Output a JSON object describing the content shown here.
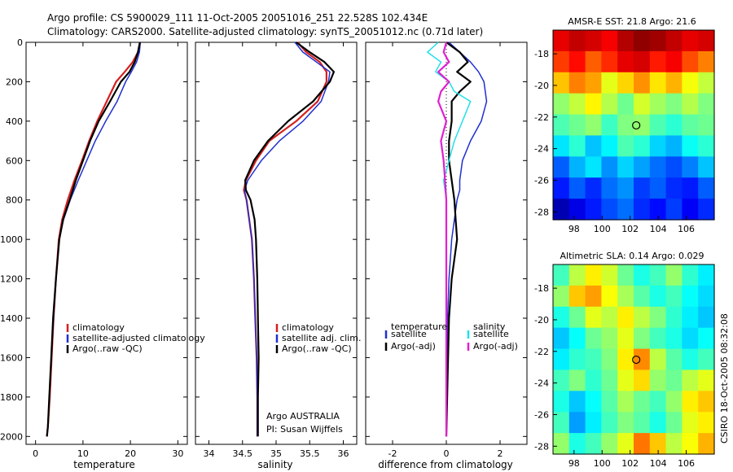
{
  "header": {
    "line1": "Argo profile: CS 5900029_111 11-Oct-2005 20051016_251 22.528S 102.434E",
    "line2": "Climatology: CARS2000. Satellite-adjusted climatology: synTS_20051012.nc (0.71d later)"
  },
  "side_label": "CSIRO 18-Oct-2005 08:32:08",
  "colors": {
    "climatology": "#d42020",
    "satellite": "#1f2fd0",
    "argo": "#000000",
    "satellite_salinity": "#20e0e8",
    "argo_salinity": "#e020d0"
  },
  "chart_data": [
    {
      "type": "line",
      "id": "temperature",
      "xlabel": "temperature",
      "ylabel": "",
      "xlim": [
        -2,
        32
      ],
      "ylim": [
        2040,
        0
      ],
      "xticks": [
        0,
        10,
        20,
        30
      ],
      "yticks": [
        0,
        200,
        400,
        600,
        800,
        1000,
        1200,
        1400,
        1600,
        1800,
        2000
      ],
      "y_reversed": true,
      "legend": [
        "climatology",
        "satellite-adjusted climatology",
        "Argo(..raw -QC)"
      ],
      "legend_position": "lower-right",
      "series": [
        {
          "name": "climatology",
          "color": "#d42020",
          "width": 2.2,
          "x": [
            22.0,
            21.6,
            20.5,
            18.8,
            17.0,
            15.0,
            13.0,
            11.3,
            9.8,
            8.2,
            6.8,
            5.6,
            4.9,
            4.3,
            3.8,
            3.4,
            3.0,
            2.6,
            2.4
          ],
          "y": [
            0,
            50,
            100,
            150,
            200,
            300,
            400,
            500,
            600,
            700,
            800,
            900,
            1000,
            1200,
            1400,
            1600,
            1800,
            1950,
            2000
          ]
        },
        {
          "name": "satellite-adjusted climatology",
          "color": "#1f2fd0",
          "width": 1.5,
          "x": [
            22.1,
            21.9,
            21.3,
            20.2,
            19.0,
            17.2,
            14.8,
            12.6,
            10.8,
            9.0,
            7.3,
            5.9,
            5.0,
            4.3,
            3.8,
            3.3,
            2.9,
            2.6,
            2.4
          ],
          "y": [
            0,
            50,
            100,
            150,
            200,
            300,
            400,
            500,
            600,
            700,
            800,
            900,
            1000,
            1200,
            1400,
            1600,
            1800,
            1950,
            2000
          ]
        },
        {
          "name": "Argo(..raw -QC)",
          "color": "#000000",
          "width": 2.2,
          "x": [
            22.0,
            21.6,
            20.9,
            19.8,
            18.0,
            15.7,
            13.3,
            11.5,
            10.0,
            8.5,
            7.2,
            5.8,
            5.0,
            4.3,
            3.7,
            3.3,
            2.9,
            2.6,
            2.4
          ],
          "y": [
            0,
            50,
            100,
            150,
            200,
            300,
            400,
            500,
            600,
            700,
            800,
            900,
            1000,
            1200,
            1400,
            1600,
            1800,
            1950,
            2000
          ]
        }
      ]
    },
    {
      "type": "line",
      "id": "salinity",
      "xlabel": "salinity",
      "ylabel": "",
      "xlim": [
        33.8,
        36.2
      ],
      "ylim": [
        2040,
        0
      ],
      "xticks": [
        34,
        34.5,
        35,
        35.5,
        36
      ],
      "yticks": [
        0,
        200,
        400,
        600,
        800,
        1000,
        1200,
        1400,
        1600,
        1800,
        2000
      ],
      "y_reversed": true,
      "legend": [
        "climatology",
        "satellite adj. clim.",
        "Argo(..raw -QC)"
      ],
      "legend_position": "lower-right",
      "annotation": [
        "Argo AUSTRALIA",
        "PI: Susan Wijffels"
      ],
      "series": [
        {
          "name": "climatology",
          "color": "#d42020",
          "width": 2.2,
          "x": [
            35.32,
            35.45,
            35.65,
            35.75,
            35.75,
            35.62,
            35.3,
            34.9,
            34.7,
            34.55,
            34.52,
            34.56,
            34.6,
            34.64,
            34.67,
            34.69,
            34.71,
            34.72,
            34.72
          ],
          "y": [
            0,
            50,
            100,
            150,
            200,
            300,
            400,
            500,
            600,
            700,
            750,
            800,
            900,
            1000,
            1200,
            1400,
            1600,
            1800,
            2000
          ]
        },
        {
          "name": "satellite adj. clim.",
          "color": "#1f2fd0",
          "width": 1.5,
          "x": [
            35.28,
            35.4,
            35.6,
            35.8,
            35.78,
            35.67,
            35.4,
            35.05,
            34.78,
            34.58,
            34.53,
            34.56,
            34.6,
            34.64,
            34.67,
            34.69,
            34.71,
            34.72,
            34.72
          ],
          "y": [
            0,
            50,
            100,
            150,
            200,
            300,
            400,
            500,
            600,
            700,
            750,
            800,
            900,
            1000,
            1200,
            1400,
            1600,
            1800,
            2000
          ]
        },
        {
          "name": "Argo(..raw -QC)",
          "color": "#000000",
          "width": 2.2,
          "x": [
            35.3,
            35.5,
            35.72,
            35.86,
            35.8,
            35.55,
            35.18,
            34.88,
            34.67,
            34.54,
            34.55,
            34.62,
            34.68,
            34.7,
            34.72,
            34.73,
            34.74,
            34.73,
            34.73
          ],
          "y": [
            0,
            50,
            100,
            150,
            200,
            300,
            400,
            500,
            600,
            700,
            750,
            800,
            900,
            1000,
            1200,
            1400,
            1600,
            1800,
            2000
          ]
        }
      ]
    },
    {
      "type": "line",
      "id": "difference",
      "xlabel": "difference from climatology",
      "ylabel": "",
      "xlim": [
        -3,
        3
      ],
      "ylim": [
        2040,
        0
      ],
      "xticks": [
        -2,
        0,
        2
      ],
      "yticks": [
        0,
        200,
        400,
        600,
        800,
        1000,
        1200,
        1400,
        1600,
        1800,
        2000
      ],
      "y_reversed": true,
      "legend_position": "lower-right",
      "legend_temperature": {
        "title": "temperature",
        "items": [
          "satellite",
          "Argo(-adj)"
        ]
      },
      "legend_salinity": {
        "title": "salinity",
        "items": [
          "satellite",
          "Argo(-adj)"
        ]
      },
      "series": [
        {
          "name": "temperature satellite",
          "color": "#1f2fd0",
          "width": 1.5,
          "x": [
            0.1,
            0.5,
            0.9,
            1.2,
            1.4,
            1.5,
            1.3,
            0.9,
            0.6,
            0.5,
            0.5,
            0.4,
            0.3,
            0.2,
            0.1,
            0.05,
            0.02,
            0.0
          ],
          "y": [
            0,
            50,
            100,
            150,
            200,
            300,
            400,
            500,
            600,
            700,
            750,
            800,
            900,
            1000,
            1200,
            1400,
            1700,
            2000
          ]
        },
        {
          "name": "temperature Argo(-adj)",
          "color": "#000000",
          "width": 2.2,
          "x": [
            0.0,
            0.5,
            0.8,
            0.4,
            0.9,
            0.5,
            0.2,
            0.2,
            0.1,
            0.1,
            0.2,
            0.3,
            0.35,
            0.4,
            0.3,
            0.2,
            0.1,
            0.05,
            0.0
          ],
          "y": [
            0,
            50,
            100,
            150,
            200,
            250,
            300,
            400,
            500,
            600,
            700,
            800,
            900,
            1000,
            1100,
            1200,
            1400,
            1700,
            2000
          ]
        },
        {
          "name": "salinity satellite",
          "color": "#20e0e8",
          "width": 1.5,
          "x": [
            -0.3,
            -0.7,
            -0.2,
            -0.4,
            0.1,
            0.3,
            0.9,
            0.6,
            0.3,
            0.1,
            -0.1,
            0.0,
            0.0,
            0.0
          ],
          "y": [
            0,
            50,
            100,
            150,
            200,
            250,
            300,
            400,
            500,
            600,
            700,
            800,
            1000,
            2000
          ]
        },
        {
          "name": "salinity Argo(-adj)",
          "color": "#e020d0",
          "width": 2.2,
          "x": [
            0.0,
            -0.1,
            0.1,
            -0.3,
            0.1,
            -0.2,
            -0.3,
            0.0,
            -0.2,
            -0.1,
            -0.05,
            0.0,
            0.0,
            0.0
          ],
          "y": [
            0,
            50,
            100,
            150,
            200,
            250,
            300,
            400,
            500,
            600,
            700,
            800,
            1000,
            2000
          ]
        }
      ]
    },
    {
      "type": "heatmap",
      "id": "sst_map",
      "title": "AMSR-E SST: 21.8 Argo: 21.6",
      "xlim": [
        96.5,
        108
      ],
      "ylim": [
        -28.5,
        -16.5
      ],
      "xticks": [
        98,
        100,
        102,
        104,
        106
      ],
      "yticks": [
        -18,
        -20,
        -22,
        -24,
        -26,
        -28
      ],
      "marker": {
        "lon": 102.434,
        "lat": -22.528
      },
      "colormap": "jet",
      "value_range": [
        18.5,
        24.5
      ],
      "field": [
        [
          23.9,
          24.1,
          24.0,
          23.8,
          24.2,
          24.4,
          24.3,
          24.1,
          23.9,
          24.0
        ],
        [
          23.4,
          23.7,
          23.2,
          23.5,
          23.9,
          24.0,
          23.6,
          23.8,
          23.3,
          23.0
        ],
        [
          22.6,
          23.0,
          22.8,
          22.1,
          22.5,
          22.9,
          22.4,
          22.7,
          22.2,
          21.9
        ],
        [
          21.6,
          21.9,
          22.3,
          21.8,
          21.4,
          22.0,
          21.7,
          21.5,
          21.8,
          21.5
        ],
        [
          21.2,
          21.4,
          21.6,
          21.1,
          21.5,
          21.6,
          21.2,
          21.0,
          21.3,
          21.4
        ],
        [
          20.6,
          21.0,
          20.4,
          20.7,
          21.2,
          21.0,
          20.5,
          20.3,
          20.8,
          21.0
        ],
        [
          19.8,
          20.3,
          20.6,
          20.1,
          20.5,
          20.2,
          19.9,
          19.7,
          20.0,
          20.4
        ],
        [
          19.4,
          19.8,
          19.5,
          19.9,
          20.1,
          19.6,
          19.8,
          19.5,
          19.4,
          19.8
        ],
        [
          18.8,
          19.1,
          19.4,
          19.7,
          19.9,
          19.5,
          19.3,
          19.6,
          19.2,
          19.5
        ]
      ]
    },
    {
      "type": "heatmap",
      "id": "sla_map",
      "title": "Altimetric SLA: 0.14 Argo: 0.029",
      "xlim": [
        96.5,
        108
      ],
      "ylim": [
        -28.5,
        -16.5
      ],
      "xticks": [
        98,
        100,
        102,
        104,
        106
      ],
      "yticks": [
        -18,
        -20,
        -22,
        -24,
        -26,
        -28
      ],
      "marker": {
        "lon": 102.434,
        "lat": -22.528
      },
      "colormap": "jet",
      "value_range": [
        -0.1,
        0.4
      ],
      "field": [
        [
          0.12,
          0.18,
          0.22,
          0.19,
          0.14,
          0.1,
          0.12,
          0.16,
          0.11,
          0.08
        ],
        [
          0.16,
          0.24,
          0.26,
          0.21,
          0.17,
          0.13,
          0.1,
          0.12,
          0.09,
          0.07
        ],
        [
          0.1,
          0.14,
          0.2,
          0.18,
          0.22,
          0.18,
          0.15,
          0.11,
          0.08,
          0.06
        ],
        [
          0.06,
          0.09,
          0.14,
          0.16,
          0.2,
          0.15,
          0.12,
          0.1,
          0.07,
          0.09
        ],
        [
          0.08,
          0.11,
          0.12,
          0.15,
          0.22,
          0.27,
          0.18,
          0.13,
          0.1,
          0.12
        ],
        [
          0.12,
          0.15,
          0.11,
          0.14,
          0.2,
          0.23,
          0.16,
          0.14,
          0.18,
          0.2
        ],
        [
          0.1,
          0.06,
          0.09,
          0.13,
          0.17,
          0.14,
          0.12,
          0.16,
          0.22,
          0.24
        ],
        [
          0.12,
          0.04,
          0.08,
          0.12,
          0.15,
          0.13,
          0.1,
          0.14,
          0.2,
          0.22
        ],
        [
          0.16,
          0.1,
          0.12,
          0.16,
          0.2,
          0.28,
          0.24,
          0.18,
          0.21,
          0.25
        ]
      ]
    }
  ]
}
